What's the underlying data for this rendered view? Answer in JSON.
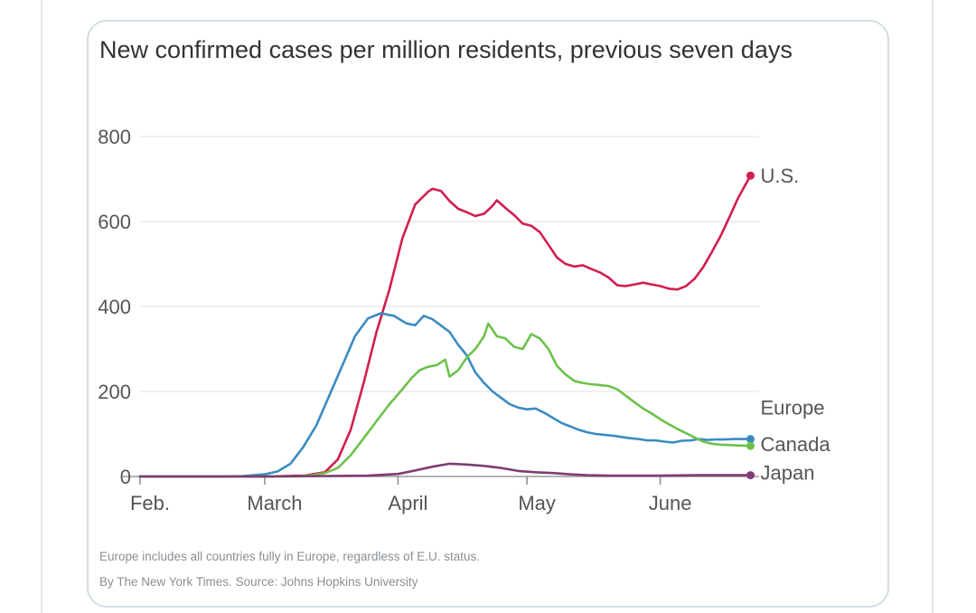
{
  "chart_data": {
    "type": "line",
    "title": "New confirmed cases per million residents, previous seven days",
    "xlabel": "",
    "ylabel": "",
    "x_start": "2020-02-01",
    "x_end": "2020-06-24",
    "x_ticks": [
      {
        "label": "Feb.",
        "date": "2020-02-01"
      },
      {
        "label": "March",
        "date": "2020-03-01"
      },
      {
        "label": "April",
        "date": "2020-04-01"
      },
      {
        "label": "May",
        "date": "2020-05-01"
      },
      {
        "label": "June",
        "date": "2020-06-01"
      }
    ],
    "y_ticks": [
      0,
      200,
      400,
      600,
      800
    ],
    "ylim": [
      0,
      800
    ],
    "grid": true,
    "legend": "end-of-line labels",
    "series": [
      {
        "name": "U.S.",
        "color": "#d11e4e",
        "points": [
          [
            "2020-02-01",
            0
          ],
          [
            "2020-03-01",
            0
          ],
          [
            "2020-03-10",
            2
          ],
          [
            "2020-03-15",
            10
          ],
          [
            "2020-03-18",
            40
          ],
          [
            "2020-03-21",
            110
          ],
          [
            "2020-03-24",
            220
          ],
          [
            "2020-03-27",
            340
          ],
          [
            "2020-03-30",
            440
          ],
          [
            "2020-04-02",
            560
          ],
          [
            "2020-04-05",
            640
          ],
          [
            "2020-04-08",
            670
          ],
          [
            "2020-04-09",
            677
          ],
          [
            "2020-04-11",
            672
          ],
          [
            "2020-04-13",
            648
          ],
          [
            "2020-04-15",
            630
          ],
          [
            "2020-04-17",
            622
          ],
          [
            "2020-04-19",
            613
          ],
          [
            "2020-04-21",
            618
          ],
          [
            "2020-04-23",
            637
          ],
          [
            "2020-04-24",
            650
          ],
          [
            "2020-04-26",
            632
          ],
          [
            "2020-04-28",
            615
          ],
          [
            "2020-04-30",
            595
          ],
          [
            "2020-05-02",
            590
          ],
          [
            "2020-05-04",
            575
          ],
          [
            "2020-05-06",
            545
          ],
          [
            "2020-05-08",
            515
          ],
          [
            "2020-05-10",
            500
          ],
          [
            "2020-05-12",
            494
          ],
          [
            "2020-05-14",
            497
          ],
          [
            "2020-05-16",
            488
          ],
          [
            "2020-05-18",
            480
          ],
          [
            "2020-05-20",
            468
          ],
          [
            "2020-05-22",
            450
          ],
          [
            "2020-05-24",
            448
          ],
          [
            "2020-05-26",
            452
          ],
          [
            "2020-05-28",
            456
          ],
          [
            "2020-05-30",
            452
          ],
          [
            "2020-06-01",
            448
          ],
          [
            "2020-06-03",
            442
          ],
          [
            "2020-06-05",
            440
          ],
          [
            "2020-06-07",
            448
          ],
          [
            "2020-06-09",
            465
          ],
          [
            "2020-06-11",
            493
          ],
          [
            "2020-06-13",
            528
          ],
          [
            "2020-06-15",
            565
          ],
          [
            "2020-06-17",
            608
          ],
          [
            "2020-06-19",
            653
          ],
          [
            "2020-06-21",
            690
          ],
          [
            "2020-06-22",
            708
          ]
        ]
      },
      {
        "name": "Europe",
        "color": "#3b8bc2",
        "points": [
          [
            "2020-02-01",
            0
          ],
          [
            "2020-02-20",
            0
          ],
          [
            "2020-02-25",
            1
          ],
          [
            "2020-03-01",
            5
          ],
          [
            "2020-03-04",
            12
          ],
          [
            "2020-03-07",
            30
          ],
          [
            "2020-03-10",
            70
          ],
          [
            "2020-03-13",
            120
          ],
          [
            "2020-03-16",
            190
          ],
          [
            "2020-03-19",
            260
          ],
          [
            "2020-03-22",
            330
          ],
          [
            "2020-03-25",
            372
          ],
          [
            "2020-03-28",
            384
          ],
          [
            "2020-03-31",
            378
          ],
          [
            "2020-04-03",
            360
          ],
          [
            "2020-04-05",
            356
          ],
          [
            "2020-04-07",
            378
          ],
          [
            "2020-04-09",
            370
          ],
          [
            "2020-04-11",
            355
          ],
          [
            "2020-04-13",
            340
          ],
          [
            "2020-04-15",
            310
          ],
          [
            "2020-04-17",
            285
          ],
          [
            "2020-04-19",
            245
          ],
          [
            "2020-04-21",
            220
          ],
          [
            "2020-04-23",
            200
          ],
          [
            "2020-04-25",
            185
          ],
          [
            "2020-04-27",
            170
          ],
          [
            "2020-04-29",
            162
          ],
          [
            "2020-05-01",
            158
          ],
          [
            "2020-05-03",
            160
          ],
          [
            "2020-05-05",
            150
          ],
          [
            "2020-05-07",
            138
          ],
          [
            "2020-05-09",
            126
          ],
          [
            "2020-05-11",
            118
          ],
          [
            "2020-05-13",
            110
          ],
          [
            "2020-05-15",
            104
          ],
          [
            "2020-05-17",
            100
          ],
          [
            "2020-05-19",
            98
          ],
          [
            "2020-05-21",
            96
          ],
          [
            "2020-05-23",
            93
          ],
          [
            "2020-05-25",
            90
          ],
          [
            "2020-05-27",
            88
          ],
          [
            "2020-05-29",
            85
          ],
          [
            "2020-05-31",
            85
          ],
          [
            "2020-06-02",
            82
          ],
          [
            "2020-06-04",
            80
          ],
          [
            "2020-06-06",
            84
          ],
          [
            "2020-06-08",
            85
          ],
          [
            "2020-06-10",
            88
          ],
          [
            "2020-06-12",
            86
          ],
          [
            "2020-06-14",
            87
          ],
          [
            "2020-06-16",
            87
          ],
          [
            "2020-06-18",
            88
          ],
          [
            "2020-06-20",
            88
          ],
          [
            "2020-06-22",
            88
          ]
        ]
      },
      {
        "name": "Canada",
        "color": "#6cc24a",
        "points": [
          [
            "2020-02-01",
            0
          ],
          [
            "2020-03-08",
            0
          ],
          [
            "2020-03-12",
            3
          ],
          [
            "2020-03-15",
            8
          ],
          [
            "2020-03-18",
            20
          ],
          [
            "2020-03-21",
            50
          ],
          [
            "2020-03-24",
            90
          ],
          [
            "2020-03-27",
            130
          ],
          [
            "2020-03-30",
            170
          ],
          [
            "2020-04-02",
            205
          ],
          [
            "2020-04-04",
            230
          ],
          [
            "2020-04-06",
            250
          ],
          [
            "2020-04-08",
            258
          ],
          [
            "2020-04-10",
            262
          ],
          [
            "2020-04-12",
            275
          ],
          [
            "2020-04-13",
            235
          ],
          [
            "2020-04-15",
            250
          ],
          [
            "2020-04-17",
            280
          ],
          [
            "2020-04-19",
            300
          ],
          [
            "2020-04-21",
            330
          ],
          [
            "2020-04-22",
            360
          ],
          [
            "2020-04-24",
            330
          ],
          [
            "2020-04-26",
            325
          ],
          [
            "2020-04-28",
            305
          ],
          [
            "2020-04-30",
            300
          ],
          [
            "2020-05-02",
            335
          ],
          [
            "2020-05-04",
            325
          ],
          [
            "2020-05-06",
            300
          ],
          [
            "2020-05-08",
            260
          ],
          [
            "2020-05-10",
            240
          ],
          [
            "2020-05-12",
            225
          ],
          [
            "2020-05-14",
            220
          ],
          [
            "2020-05-16",
            217
          ],
          [
            "2020-05-18",
            215
          ],
          [
            "2020-05-20",
            213
          ],
          [
            "2020-05-22",
            205
          ],
          [
            "2020-05-24",
            190
          ],
          [
            "2020-05-26",
            175
          ],
          [
            "2020-05-28",
            160
          ],
          [
            "2020-05-30",
            148
          ],
          [
            "2020-06-01",
            135
          ],
          [
            "2020-06-03",
            123
          ],
          [
            "2020-06-05",
            112
          ],
          [
            "2020-06-07",
            102
          ],
          [
            "2020-06-09",
            92
          ],
          [
            "2020-06-11",
            82
          ],
          [
            "2020-06-13",
            77
          ],
          [
            "2020-06-15",
            75
          ],
          [
            "2020-06-17",
            74
          ],
          [
            "2020-06-19",
            73
          ],
          [
            "2020-06-22",
            72
          ]
        ]
      },
      {
        "name": "Japan",
        "color": "#7d3c73",
        "points": [
          [
            "2020-02-01",
            0
          ],
          [
            "2020-03-01",
            0
          ],
          [
            "2020-03-15",
            1
          ],
          [
            "2020-03-25",
            2
          ],
          [
            "2020-04-01",
            6
          ],
          [
            "2020-04-05",
            14
          ],
          [
            "2020-04-09",
            23
          ],
          [
            "2020-04-13",
            30
          ],
          [
            "2020-04-17",
            28
          ],
          [
            "2020-04-21",
            25
          ],
          [
            "2020-04-25",
            20
          ],
          [
            "2020-04-29",
            13
          ],
          [
            "2020-05-03",
            10
          ],
          [
            "2020-05-07",
            8
          ],
          [
            "2020-05-11",
            5
          ],
          [
            "2020-05-15",
            3
          ],
          [
            "2020-05-20",
            2
          ],
          [
            "2020-06-01",
            2
          ],
          [
            "2020-06-10",
            3
          ],
          [
            "2020-06-22",
            3
          ]
        ]
      }
    ]
  },
  "footnote": "Europe includes all countries fully in Europe, regardless of E.U. status.",
  "credit": "By The New York Times. Source: Johns Hopkins University"
}
